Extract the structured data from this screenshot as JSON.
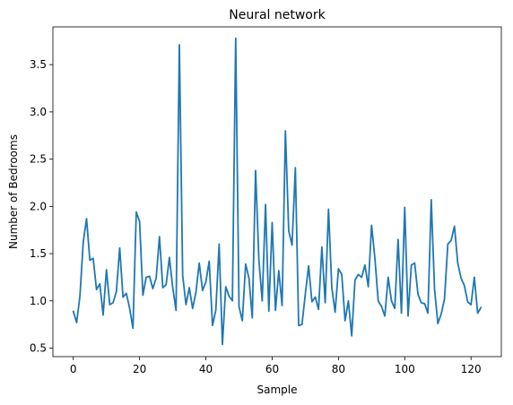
{
  "chart_data": {
    "type": "line",
    "title": "Neural network",
    "xlabel": "Sample",
    "ylabel": "Number of Bedrooms",
    "xlim": [
      -6.15,
      129.15
    ],
    "ylim": [
      0.41,
      3.9
    ],
    "x_ticks": [
      0,
      20,
      40,
      60,
      80,
      100,
      120
    ],
    "x_tick_labels": [
      "0",
      "20",
      "40",
      "60",
      "80",
      "100",
      "120"
    ],
    "y_ticks": [
      0.5,
      1.0,
      1.5,
      2.0,
      2.5,
      3.0,
      3.5
    ],
    "y_tick_labels": [
      "0.5",
      "1.0",
      "1.5",
      "2.0",
      "2.5",
      "3.0",
      "3.5"
    ],
    "grid": false,
    "legend": "none",
    "series": [
      {
        "color": "#1f77b4",
        "x": [
          0,
          1,
          2,
          3,
          4,
          5,
          6,
          7,
          8,
          9,
          10,
          11,
          12,
          13,
          14,
          15,
          16,
          17,
          18,
          19,
          20,
          21,
          22,
          23,
          24,
          25,
          26,
          27,
          28,
          29,
          30,
          31,
          32,
          33,
          34,
          35,
          36,
          37,
          38,
          39,
          40,
          41,
          42,
          43,
          44,
          45,
          46,
          47,
          48,
          49,
          50,
          51,
          52,
          53,
          54,
          55,
          56,
          57,
          58,
          59,
          60,
          61,
          62,
          63,
          64,
          65,
          66,
          67,
          68,
          69,
          70,
          71,
          72,
          73,
          74,
          75,
          76,
          77,
          78,
          79,
          80,
          81,
          82,
          83,
          84,
          85,
          86,
          87,
          88,
          89,
          90,
          91,
          92,
          93,
          94,
          95,
          96,
          97,
          98,
          99,
          100,
          101,
          102,
          103,
          104,
          105,
          106,
          107,
          108,
          109,
          110,
          111,
          112,
          113,
          114,
          115,
          116,
          117,
          118,
          119,
          120,
          121,
          122,
          123
        ],
        "values": [
          0.89,
          0.77,
          1.05,
          1.62,
          1.87,
          1.43,
          1.45,
          1.12,
          1.18,
          0.85,
          1.33,
          0.96,
          0.98,
          1.1,
          1.56,
          1.04,
          1.08,
          0.92,
          0.71,
          1.94,
          1.84,
          1.06,
          1.25,
          1.26,
          1.13,
          1.24,
          1.68,
          1.14,
          1.17,
          1.46,
          1.14,
          0.9,
          3.71,
          1.27,
          0.96,
          1.14,
          0.92,
          1.09,
          1.4,
          1.11,
          1.2,
          1.42,
          0.74,
          0.9,
          1.6,
          0.54,
          1.15,
          1.05,
          1.0,
          3.78,
          0.94,
          0.79,
          1.39,
          1.24,
          0.82,
          2.38,
          1.43,
          1.0,
          2.02,
          0.89,
          1.83,
          0.9,
          1.32,
          0.95,
          2.8,
          1.74,
          1.59,
          2.41,
          0.74,
          0.75,
          1.07,
          1.37,
          0.99,
          1.04,
          0.91,
          1.57,
          0.98,
          1.97,
          1.14,
          0.88,
          1.34,
          1.28,
          0.79,
          1.0,
          0.63,
          1.22,
          1.28,
          1.25,
          1.38,
          1.15,
          1.8,
          1.45,
          1.0,
          0.94,
          0.84,
          1.25,
          1.0,
          0.92,
          1.65,
          0.87,
          1.99,
          0.84,
          1.38,
          1.4,
          1.07,
          0.98,
          0.97,
          0.87,
          2.07,
          1.12,
          0.76,
          0.86,
          1.02,
          1.6,
          1.64,
          1.79,
          1.4,
          1.24,
          1.16,
          0.99,
          0.96,
          1.25,
          0.87,
          0.93
        ]
      }
    ]
  }
}
